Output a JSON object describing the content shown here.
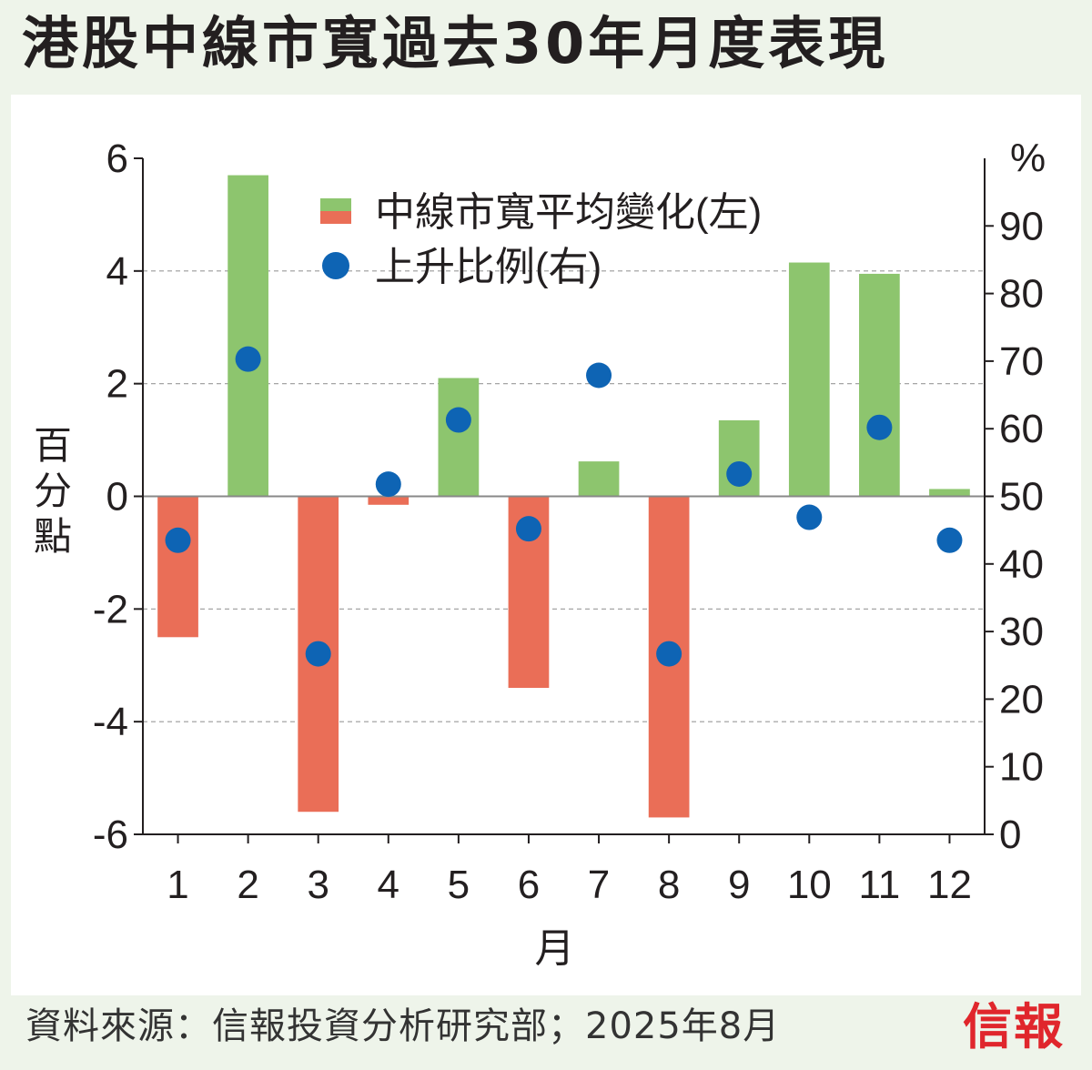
{
  "title": "港股中線市寬過去30年月度表現",
  "source": "資料來源：信報投資分析研究部；2025年8月",
  "logo": "信報",
  "colors": {
    "positive_bar": "#8dc56e",
    "negative_bar": "#ea6e57",
    "dot": "#0e64b4",
    "grid": "#9a9a9a",
    "axis": "#231f20"
  },
  "chart_data": {
    "type": "bar",
    "categories": [
      "1",
      "2",
      "3",
      "4",
      "5",
      "6",
      "7",
      "8",
      "9",
      "10",
      "11",
      "12"
    ],
    "xlabel": "月",
    "ylabel": "百分點",
    "y2label": "%",
    "ylim": [
      -6,
      6
    ],
    "y2lim": [
      0,
      100
    ],
    "yticks": [
      "6",
      "4",
      "2",
      "0",
      "-2",
      "-4",
      "-6"
    ],
    "y2ticks": [
      "90",
      "80",
      "70",
      "60",
      "50",
      "40",
      "30",
      "20",
      "10",
      "0"
    ],
    "grid": "horizontal dashed",
    "legend_position": "top-center",
    "series": [
      {
        "name": "中線市寬平均變化(左)",
        "type": "bar",
        "axis": "left",
        "values": [
          -2.5,
          5.7,
          -5.6,
          -0.15,
          2.1,
          -3.4,
          0.62,
          -5.7,
          1.35,
          4.15,
          3.95,
          0.13
        ]
      },
      {
        "name": "上升比例(右)",
        "type": "scatter",
        "axis": "right",
        "values": [
          43.5,
          70.3,
          26.7,
          51.8,
          61.3,
          45.2,
          67.9,
          26.7,
          53.3,
          46.9,
          60.2,
          43.5
        ]
      }
    ]
  }
}
